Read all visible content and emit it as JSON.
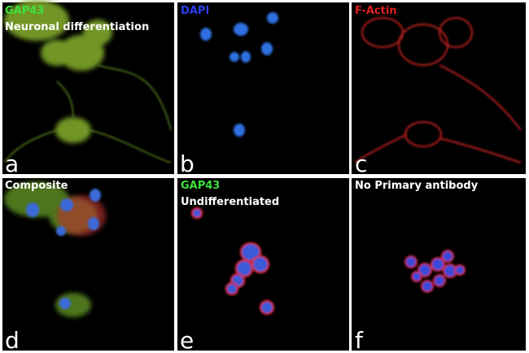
{
  "panels": [
    {
      "stain": "GAP43",
      "note": "Neuronal differentiation",
      "letter": "a"
    },
    {
      "stain": "DAPI",
      "letter": "b"
    },
    {
      "stain": "F-Actin",
      "letter": "c"
    },
    {
      "stain": "Composite",
      "letter": "d"
    },
    {
      "stain": "GAP43",
      "note": "Undifferentiated",
      "letter": "e"
    },
    {
      "stain": "No Primary antibody",
      "letter": "f"
    }
  ]
}
